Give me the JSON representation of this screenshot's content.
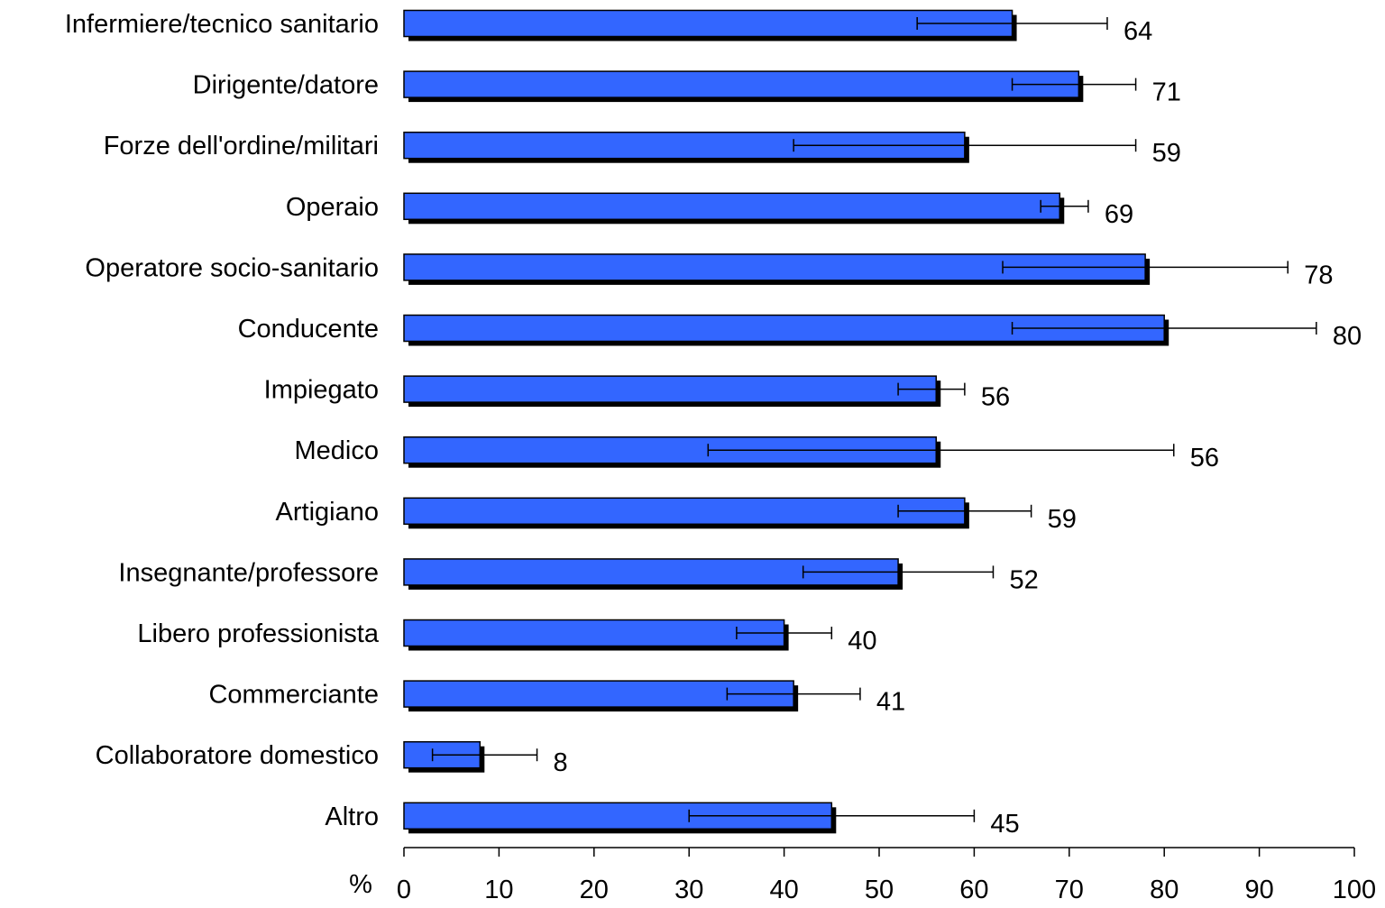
{
  "chart_data": {
    "type": "bar",
    "orientation": "horizontal",
    "categories": [
      "Infermiere/tecnico sanitario",
      "Dirigente/datore",
      "Forze dell'ordine/militari",
      "Operaio",
      "Operatore socio-sanitario",
      "Conducente",
      "Impiegato",
      "Medico",
      "Artigiano",
      "Insegnante/professore",
      "Libero professionista",
      "Commerciante",
      "Collaboratore domestico",
      "Altro"
    ],
    "values": [
      64,
      71,
      59,
      69,
      78,
      80,
      56,
      56,
      59,
      52,
      40,
      41,
      8,
      45
    ],
    "value_labels": [
      "64",
      "71",
      "59",
      "69",
      "78",
      "80",
      "56",
      "56",
      "59",
      "52",
      "40",
      "41",
      "8",
      "45"
    ],
    "error_low": [
      54,
      64,
      41,
      67,
      63,
      64,
      52,
      32,
      52,
      42,
      35,
      34,
      3,
      30
    ],
    "error_high": [
      74,
      77,
      77,
      72,
      93,
      96,
      59,
      81,
      66,
      62,
      45,
      48,
      14,
      60
    ],
    "xlabel": "%",
    "xlim": [
      0,
      100
    ],
    "xticks": [
      "0",
      "10",
      "20",
      "30",
      "40",
      "50",
      "60",
      "70",
      "80",
      "90",
      "100"
    ],
    "bar_color": "#3366ff",
    "shadow_color": "#000000",
    "grid": false,
    "legend": "none"
  }
}
